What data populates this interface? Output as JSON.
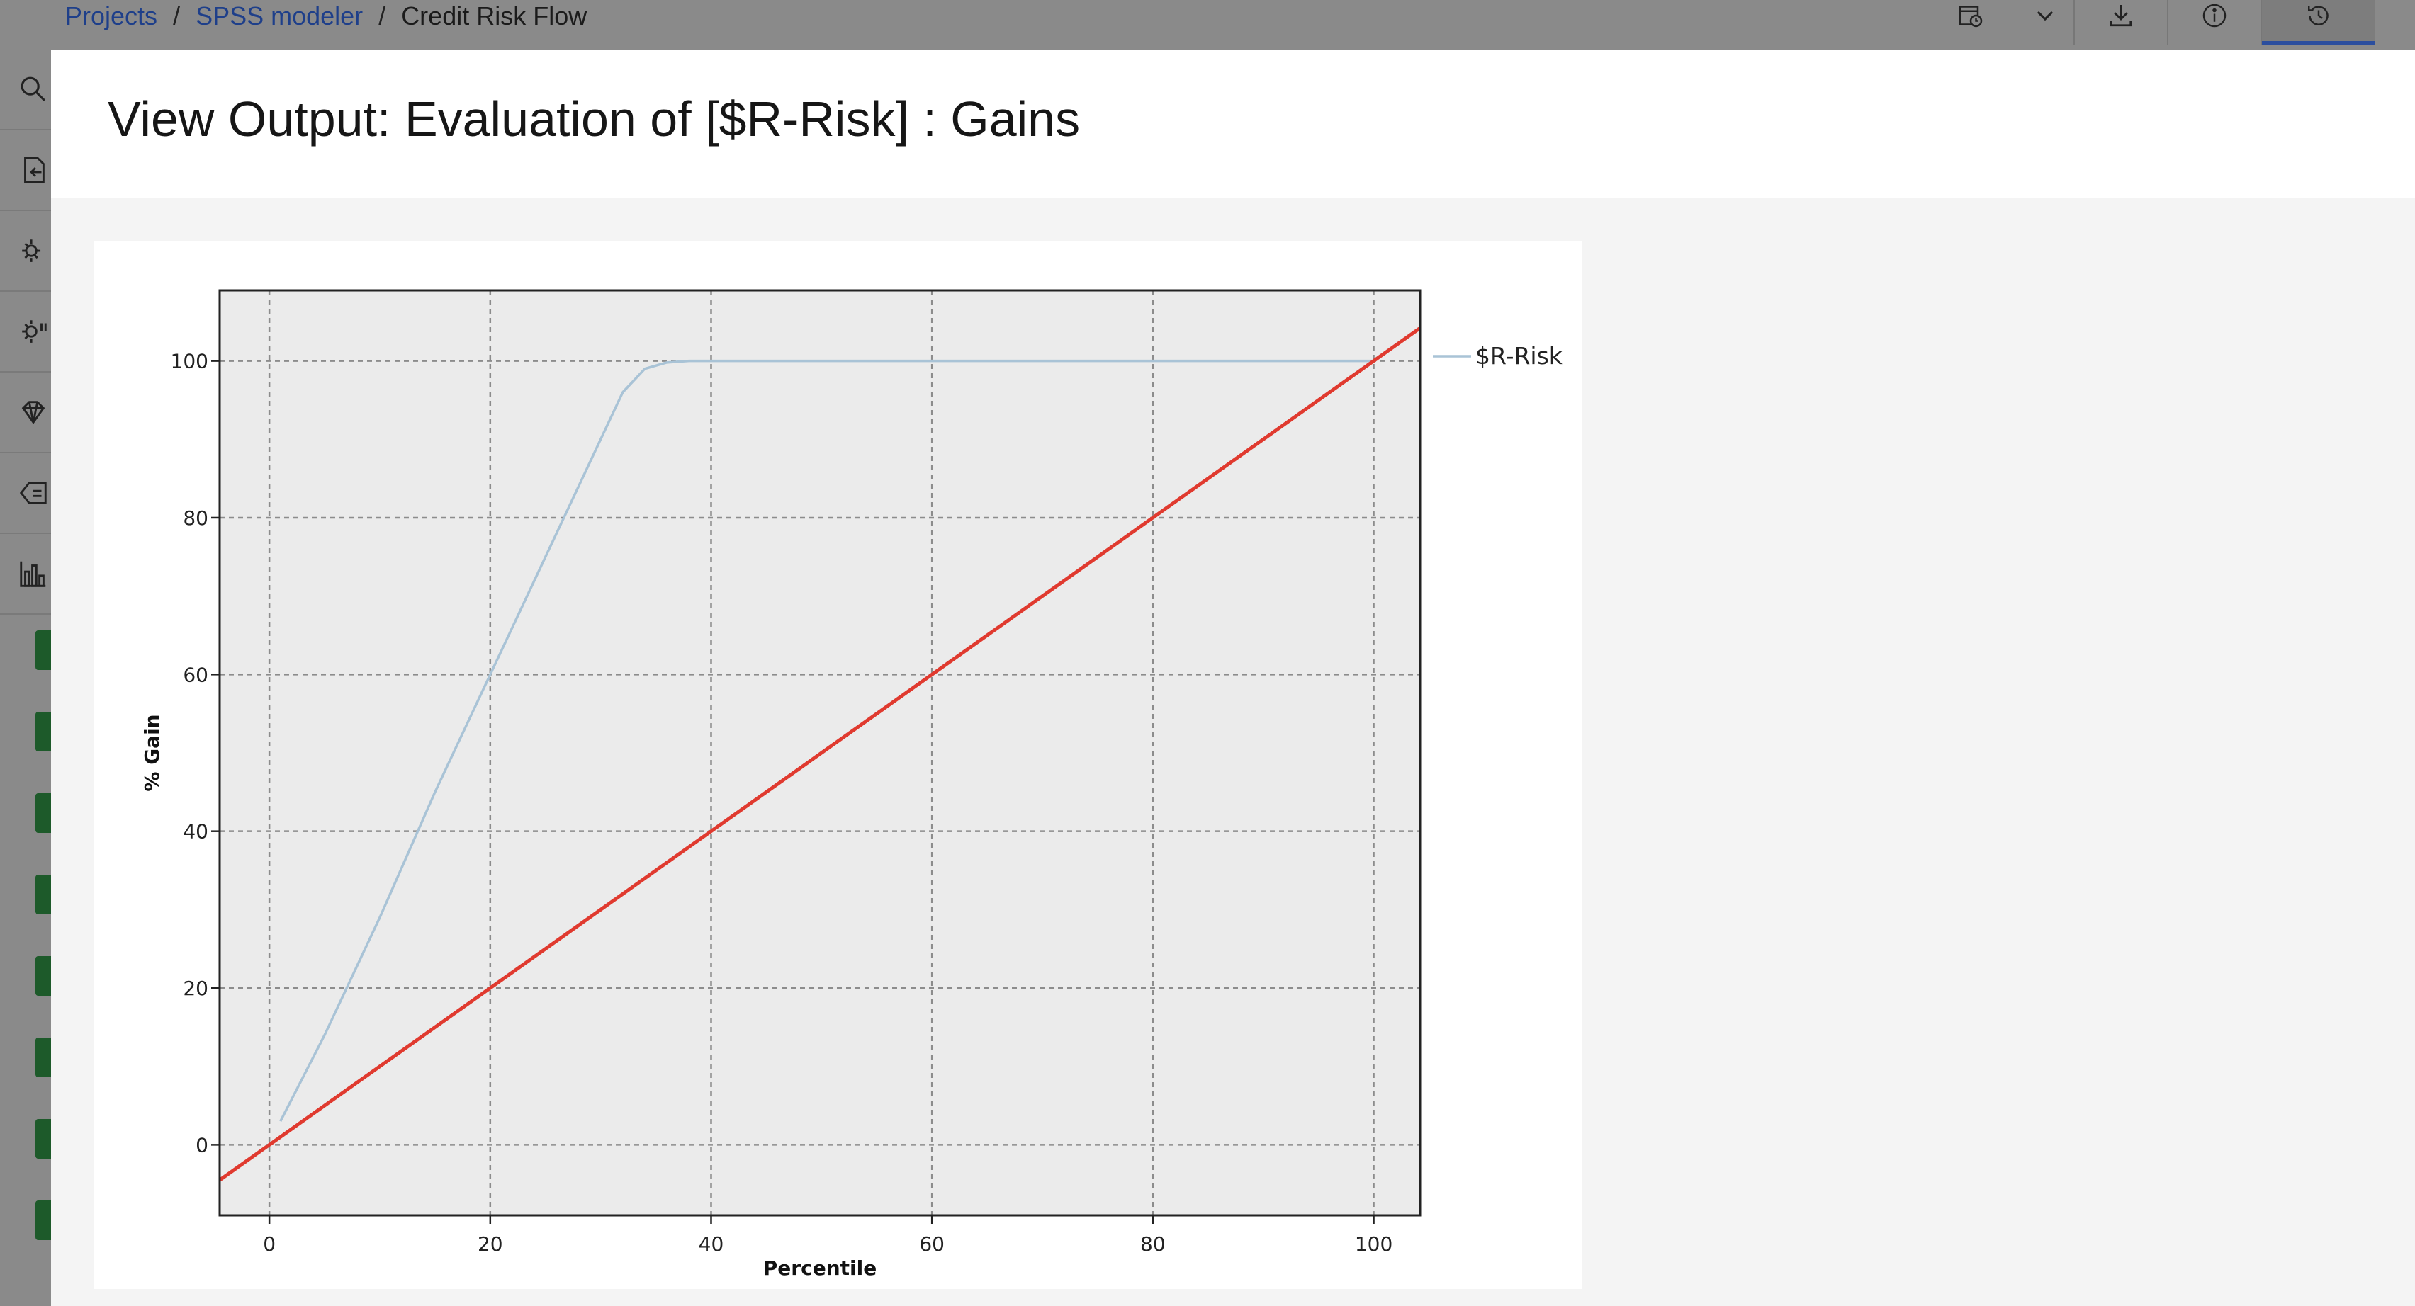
{
  "breadcrumb": {
    "items": [
      "Projects",
      "SPSS modeler"
    ],
    "separator": "/",
    "current": "Credit Risk Flow"
  },
  "toolbar": {
    "icons": [
      "schedule-icon",
      "chevron-down-icon",
      "download-icon",
      "info-icon",
      "history-icon"
    ]
  },
  "left_rail": {
    "icons": [
      "search-icon",
      "import-icon",
      "record-ops-icon",
      "field-ops-icon",
      "modeling-icon",
      "text-analytics-icon",
      "graphs-icon"
    ],
    "node_count": 8
  },
  "modal": {
    "title": "View Output: Evaluation of [$R-Risk] : Gains"
  },
  "colors": {
    "model_line": "#a9c3d6",
    "baseline": "#e03a2f",
    "plot_bg": "#ebebeb"
  },
  "chart_data": {
    "type": "line",
    "title": "",
    "xlabel": "Percentile",
    "ylabel": "% Gain",
    "xlim": [
      -4.5,
      104.2
    ],
    "ylim": [
      -9,
      109
    ],
    "xticks": [
      0,
      20,
      40,
      60,
      80,
      100
    ],
    "yticks": [
      0,
      20,
      40,
      60,
      80,
      100
    ],
    "grid": true,
    "legend": {
      "position": "right",
      "entries": [
        "$R-Risk"
      ]
    },
    "series": [
      {
        "name": "$R-Risk",
        "x": [
          1,
          5,
          10,
          15,
          20,
          25,
          30,
          32,
          34,
          36,
          38,
          40,
          60,
          80,
          100
        ],
        "y": [
          3,
          14,
          29,
          45,
          60,
          75,
          90,
          96,
          99,
          99.8,
          100,
          100,
          100,
          100,
          100
        ]
      },
      {
        "name": "",
        "x": [
          -4.5,
          104.2
        ],
        "y": [
          -4.5,
          104.2
        ]
      }
    ]
  }
}
